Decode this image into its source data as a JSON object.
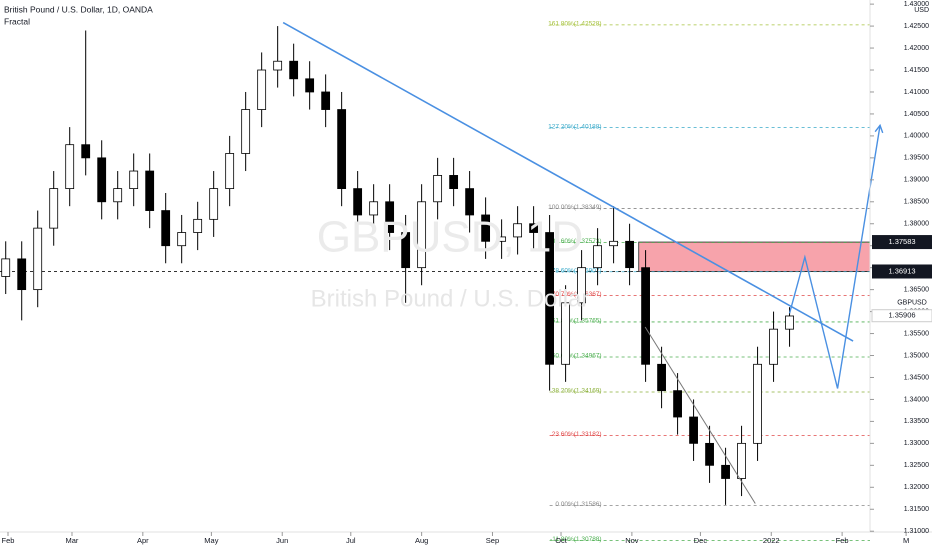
{
  "chart_data": {
    "type": "candlestick",
    "title": "British Pound / U.S. Dollar, 1D, OANDA",
    "indicator": "Fractal",
    "watermark": "GBPUSD, 1D",
    "watermark_subtitle": "British Pound / U.S. Dollar",
    "currency": "USD",
    "symbol_label": "GBPUSD",
    "up_color": "#ffffff",
    "down_color": "#000000",
    "x": [
      -1,
      6,
      13,
      20,
      27,
      34,
      41,
      48,
      55,
      62,
      69,
      76,
      83,
      90,
      97,
      104,
      111,
      118,
      125,
      132,
      139,
      146,
      153,
      160,
      167,
      174,
      181,
      188,
      195,
      202,
      209,
      216,
      223,
      230,
      237,
      244,
      251,
      258,
      265,
      272,
      279,
      286,
      293,
      300,
      307,
      314,
      321,
      328,
      335,
      342
    ],
    "open": [
      1.368,
      1.372,
      1.365,
      1.379,
      1.388,
      1.398,
      1.395,
      1.385,
      1.388,
      1.392,
      1.383,
      1.375,
      1.378,
      1.381,
      1.388,
      1.396,
      1.406,
      1.415,
      1.417,
      1.413,
      1.41,
      1.406,
      1.388,
      1.382,
      1.385,
      1.378,
      1.37,
      1.385,
      1.391,
      1.388,
      1.382,
      1.376,
      1.377,
      1.38,
      1.378,
      1.348,
      1.362,
      1.37,
      1.375,
      1.376,
      1.37,
      1.348,
      1.342,
      1.336,
      1.33,
      1.325,
      1.322,
      1.33,
      1.348,
      1.356
    ],
    "high": [
      1.376,
      1.376,
      1.383,
      1.392,
      1.402,
      1.424,
      1.399,
      1.392,
      1.396,
      1.396,
      1.387,
      1.382,
      1.385,
      1.392,
      1.4,
      1.41,
      1.419,
      1.425,
      1.421,
      1.417,
      1.414,
      1.41,
      1.392,
      1.389,
      1.389,
      1.382,
      1.389,
      1.395,
      1.395,
      1.392,
      1.386,
      1.381,
      1.384,
      1.384,
      1.382,
      1.366,
      1.374,
      1.379,
      1.384,
      1.38,
      1.374,
      1.352,
      1.346,
      1.34,
      1.334,
      1.329,
      1.334,
      1.352,
      1.36,
      1.361
    ],
    "low": [
      1.364,
      1.358,
      1.361,
      1.375,
      1.384,
      1.391,
      1.381,
      1.381,
      1.384,
      1.379,
      1.371,
      1.371,
      1.374,
      1.377,
      1.384,
      1.392,
      1.402,
      1.411,
      1.409,
      1.406,
      1.402,
      1.384,
      1.378,
      1.378,
      1.374,
      1.362,
      1.366,
      1.381,
      1.384,
      1.378,
      1.372,
      1.372,
      1.373,
      1.374,
      1.342,
      1.344,
      1.358,
      1.366,
      1.371,
      1.366,
      1.344,
      1.338,
      1.332,
      1.326,
      1.321,
      1.316,
      1.318,
      1.326,
      1.344,
      1.352
    ],
    "close": [
      1.372,
      1.365,
      1.379,
      1.388,
      1.398,
      1.395,
      1.385,
      1.388,
      1.392,
      1.383,
      1.375,
      1.378,
      1.381,
      1.388,
      1.396,
      1.406,
      1.415,
      1.417,
      1.413,
      1.41,
      1.406,
      1.388,
      1.382,
      1.385,
      1.378,
      1.37,
      1.385,
      1.391,
      1.388,
      1.382,
      1.376,
      1.377,
      1.38,
      1.378,
      1.348,
      1.362,
      1.37,
      1.375,
      1.376,
      1.37,
      1.348,
      1.342,
      1.336,
      1.33,
      1.325,
      1.322,
      1.33,
      1.348,
      1.356,
      1.359
    ],
    "xlim": [
      -3.5,
      377.2
    ],
    "xticks": [
      {
        "value": 0,
        "label": "Feb"
      },
      {
        "value": 28,
        "label": "Mar"
      },
      {
        "value": 59,
        "label": "Apr"
      },
      {
        "value": 89,
        "label": "May"
      },
      {
        "value": 120,
        "label": "Jun"
      },
      {
        "value": 150,
        "label": "Jul"
      },
      {
        "value": 181,
        "label": "Aug"
      },
      {
        "value": 212,
        "label": "Sep"
      },
      {
        "value": 242,
        "label": "Oct"
      },
      {
        "value": 273,
        "label": "Nov"
      },
      {
        "value": 303,
        "label": "Dec"
      },
      {
        "value": 334,
        "label": "2022"
      },
      {
        "value": 365,
        "label": "Feb"
      },
      {
        "value": 393,
        "label": "M"
      }
    ],
    "ylim": [
      1.30982,
      1.43094
    ],
    "yticks": [
      {
        "value": 1.43,
        "label": "1.43000"
      },
      {
        "value": 1.425,
        "label": "1.42500"
      },
      {
        "value": 1.42,
        "label": "1.42000"
      },
      {
        "value": 1.415,
        "label": "1.41500"
      },
      {
        "value": 1.41,
        "label": "1.41000"
      },
      {
        "value": 1.405,
        "label": "1.40500"
      },
      {
        "value": 1.4,
        "label": "1.40000"
      },
      {
        "value": 1.395,
        "label": "1.39500"
      },
      {
        "value": 1.39,
        "label": "1.39000"
      },
      {
        "value": 1.385,
        "label": "1.38500"
      },
      {
        "value": 1.38,
        "label": "1.38000"
      },
      {
        "value": 1.375,
        "label": "1.37500"
      },
      {
        "value": 1.37,
        "label": "1.37000"
      },
      {
        "value": 1.365,
        "label": "1.36500"
      },
      {
        "value": 1.36,
        "label": "1.36000"
      },
      {
        "value": 1.355,
        "label": "1.35500"
      },
      {
        "value": 1.35,
        "label": "1.35000"
      },
      {
        "value": 1.345,
        "label": "1.34500"
      },
      {
        "value": 1.34,
        "label": "1.34000"
      },
      {
        "value": 1.335,
        "label": "1.33500"
      },
      {
        "value": 1.33,
        "label": "1.33000"
      },
      {
        "value": 1.325,
        "label": "1.32500"
      },
      {
        "value": 1.32,
        "label": "1.32000"
      },
      {
        "value": 1.315,
        "label": "1.31500"
      },
      {
        "value": 1.31,
        "label": "1.31000"
      }
    ],
    "fib_levels": [
      {
        "value": 1.42528,
        "label": "161.80%(1.42528)",
        "color": "#a5c13a"
      },
      {
        "value": 1.40188,
        "label": "127.20%(1.40188)",
        "color": "#38a9c9"
      },
      {
        "value": 1.38349,
        "label": "100.00%(1.38349)",
        "color": "#888888"
      },
      {
        "value": 1.37573,
        "label": "88.60%(1.37573)",
        "color": "#4caf50"
      },
      {
        "value": 1.36907,
        "label": "78.60%(1.36907)",
        "color": "#38a9c9"
      },
      {
        "value": 1.36367,
        "label": "70.70%(1.36367)",
        "color": "#e04848"
      },
      {
        "value": 1.35765,
        "label": "61.80%(1.35765)",
        "color": "#4caf50"
      },
      {
        "value": 1.34967,
        "label": "50.00%(1.34967)",
        "color": "#4caf50"
      },
      {
        "value": 1.34169,
        "label": "38.20%(1.34169)",
        "color": "#8bb03a"
      },
      {
        "value": 1.33182,
        "label": "23.60%(1.33182)",
        "color": "#e04848"
      },
      {
        "value": 1.31586,
        "label": "0.00%(1.31586)",
        "color": "#888888"
      },
      {
        "value": 1.30788,
        "label": "-11.80%(1.30788)",
        "color": "#4caf50"
      }
    ],
    "fib_start_x": 237,
    "zone": {
      "low": {
        "value": 1.36913,
        "label": "1.36913"
      },
      "high": {
        "value": 1.37583,
        "label": "1.37583"
      },
      "start_x": 276,
      "color": "#f7a3ab"
    },
    "last_price": {
      "value": 1.35906,
      "label": "1.35906"
    },
    "trendlines": [
      {
        "color": "#4a90e2",
        "x": [
          120.4,
          369.8
        ],
        "y": [
          1.4258,
          1.3533
        ]
      },
      {
        "color": "#777777",
        "x": [
          278.8,
          327
        ],
        "y": [
          1.3565,
          1.3163
        ]
      }
    ],
    "projection": {
      "color": "#4a90e2",
      "x": [
        342,
        348.7,
        363,
        381.6
      ],
      "y": [
        1.3596,
        1.3724,
        1.3425,
        1.4024
      ]
    }
  }
}
